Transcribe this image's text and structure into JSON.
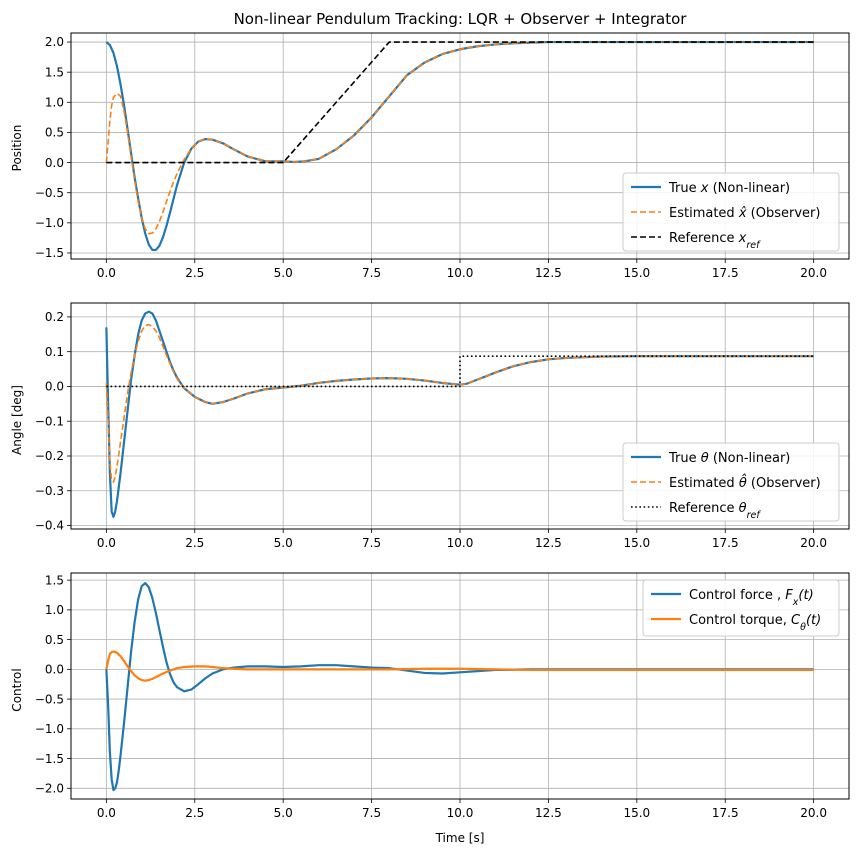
{
  "chart_data": [
    {
      "type": "line",
      "id": "position",
      "title": "Non-linear Pendulum Tracking: LQR + Observer + Integrator",
      "ylabel": "Position",
      "xlabel": "",
      "xlim": [
        -1,
        21
      ],
      "ylim": [
        -1.6,
        2.15
      ],
      "xticks": [
        0,
        2.5,
        5,
        7.5,
        10,
        12.5,
        15,
        17.5,
        20
      ],
      "xtick_labels": [
        "0.0",
        "2.5",
        "5.0",
        "7.5",
        "10.0",
        "12.5",
        "15.0",
        "17.5",
        "20.0"
      ],
      "yticks": [
        -1.5,
        -1.0,
        -0.5,
        0.0,
        0.5,
        1.0,
        1.5,
        2.0
      ],
      "ytick_labels": [
        "−1.5",
        "−1.0",
        "−0.5",
        "0.0",
        "0.5",
        "1.0",
        "1.5",
        "2.0"
      ],
      "grid": true,
      "legend_position": "lower-right",
      "series": [
        {
          "name": "True x (Non-linear)",
          "label_parts": [
            {
              "t": "True "
            },
            {
              "t": "x",
              "i": true
            },
            {
              "t": " (Non-linear)"
            }
          ],
          "color": "#1f77b4",
          "style": "solid",
          "width": 2.2,
          "x": [
            0,
            0.1,
            0.2,
            0.3,
            0.4,
            0.5,
            0.6,
            0.7,
            0.8,
            0.9,
            1.0,
            1.1,
            1.2,
            1.3,
            1.4,
            1.5,
            1.6,
            1.7,
            1.8,
            1.9,
            2.0,
            2.2,
            2.4,
            2.6,
            2.8,
            3.0,
            3.3,
            3.6,
            4.0,
            4.5,
            5.0,
            5.3,
            5.6,
            6.0,
            6.5,
            7.0,
            7.5,
            8.0,
            8.5,
            9.0,
            9.5,
            10.0,
            10.5,
            11.0,
            11.5,
            12.0,
            12.5,
            13.0,
            14.0,
            15.0,
            17.5,
            20.0
          ],
          "y": [
            2.0,
            1.95,
            1.82,
            1.6,
            1.3,
            0.95,
            0.55,
            0.15,
            -0.25,
            -0.6,
            -0.92,
            -1.18,
            -1.36,
            -1.45,
            -1.45,
            -1.38,
            -1.24,
            -1.05,
            -0.83,
            -0.6,
            -0.37,
            0.0,
            0.23,
            0.35,
            0.39,
            0.38,
            0.32,
            0.22,
            0.1,
            0.02,
            0.02,
            0.01,
            0.02,
            0.06,
            0.22,
            0.45,
            0.75,
            1.1,
            1.45,
            1.66,
            1.8,
            1.88,
            1.93,
            1.96,
            1.98,
            1.99,
            2.0,
            2.0,
            2.0,
            2.0,
            2.0,
            2.0
          ]
        },
        {
          "name": "Estimated x̂ (Observer)",
          "label_parts": [
            {
              "t": "Estimated "
            },
            {
              "t": "x̂",
              "i": true
            },
            {
              "t": " (Observer)"
            }
          ],
          "color": "#ff7f0e",
          "style": "dashed",
          "width": 1.6,
          "x": [
            0,
            0.05,
            0.1,
            0.15,
            0.2,
            0.3,
            0.4,
            0.5,
            0.6,
            0.7,
            0.8,
            0.9,
            1.0,
            1.1,
            1.2,
            1.3,
            1.4,
            1.5,
            1.6,
            1.7,
            1.8,
            1.9,
            2.0,
            2.2,
            2.4,
            2.6,
            2.8,
            3.0,
            3.3,
            3.6,
            4.0,
            4.5,
            5.0,
            5.3,
            5.6,
            6.0,
            6.5,
            7.0,
            7.5,
            8.0,
            8.5,
            9.0,
            9.5,
            10.0,
            10.5,
            11.0,
            11.5,
            12.0,
            12.5,
            13.0,
            14.0,
            15.0,
            17.5,
            20.0
          ],
          "y": [
            0.0,
            0.35,
            0.7,
            0.95,
            1.08,
            1.15,
            1.1,
            0.85,
            0.5,
            0.1,
            -0.3,
            -0.65,
            -0.92,
            -1.1,
            -1.18,
            -1.17,
            -1.1,
            -0.98,
            -0.82,
            -0.65,
            -0.48,
            -0.32,
            -0.18,
            0.05,
            0.23,
            0.35,
            0.39,
            0.38,
            0.32,
            0.22,
            0.1,
            0.02,
            0.02,
            0.01,
            0.02,
            0.06,
            0.22,
            0.45,
            0.75,
            1.1,
            1.45,
            1.66,
            1.8,
            1.88,
            1.93,
            1.96,
            1.98,
            1.99,
            2.0,
            2.0,
            2.0,
            2.0,
            2.0,
            2.0
          ]
        },
        {
          "name": "Reference x_ref",
          "label_parts": [
            {
              "t": "Reference "
            },
            {
              "t": "x",
              "i": true
            },
            {
              "t": "ref",
              "i": true,
              "sub": true
            }
          ],
          "color": "#000000",
          "style": "dashed",
          "width": 1.6,
          "x": [
            0,
            5.0,
            8.0,
            20.0
          ],
          "y": [
            0.0,
            0.0,
            2.0,
            2.0
          ]
        }
      ]
    },
    {
      "type": "line",
      "id": "angle",
      "title": "",
      "ylabel": "Angle [deg]",
      "xlabel": "",
      "xlim": [
        -1,
        21
      ],
      "ylim": [
        -0.41,
        0.24
      ],
      "xticks": [
        0,
        2.5,
        5,
        7.5,
        10,
        12.5,
        15,
        17.5,
        20
      ],
      "xtick_labels": [
        "0.0",
        "2.5",
        "5.0",
        "7.5",
        "10.0",
        "12.5",
        "15.0",
        "17.5",
        "20.0"
      ],
      "yticks": [
        -0.4,
        -0.3,
        -0.2,
        -0.1,
        0.0,
        0.1,
        0.2
      ],
      "ytick_labels": [
        "−0.4",
        "−0.3",
        "−0.2",
        "−0.1",
        "0.0",
        "0.1",
        "0.2"
      ],
      "grid": true,
      "legend_position": "lower-right",
      "series": [
        {
          "name": "True θ (Non-linear)",
          "label_parts": [
            {
              "t": "True "
            },
            {
              "t": "θ",
              "i": true
            },
            {
              "t": " (Non-linear)"
            }
          ],
          "color": "#1f77b4",
          "style": "solid",
          "width": 2.2,
          "x": [
            0,
            0.05,
            0.1,
            0.15,
            0.2,
            0.25,
            0.3,
            0.4,
            0.5,
            0.6,
            0.7,
            0.8,
            0.9,
            1.0,
            1.1,
            1.2,
            1.3,
            1.4,
            1.5,
            1.6,
            1.7,
            1.8,
            1.9,
            2.0,
            2.2,
            2.5,
            2.8,
            3.0,
            3.3,
            3.6,
            4.0,
            4.5,
            5.0,
            5.5,
            6.0,
            6.5,
            7.0,
            7.5,
            8.0,
            8.5,
            9.0,
            9.5,
            10.0,
            10.2,
            10.5,
            11.0,
            11.5,
            12.0,
            12.5,
            13.0,
            14.0,
            15.0,
            17.5,
            20.0
          ],
          "y": [
            0.17,
            -0.05,
            -0.25,
            -0.36,
            -0.375,
            -0.36,
            -0.33,
            -0.25,
            -0.16,
            -0.07,
            0.02,
            0.09,
            0.15,
            0.19,
            0.21,
            0.215,
            0.21,
            0.19,
            0.16,
            0.13,
            0.1,
            0.07,
            0.045,
            0.025,
            -0.005,
            -0.03,
            -0.045,
            -0.05,
            -0.045,
            -0.035,
            -0.02,
            -0.008,
            -0.003,
            0.002,
            0.01,
            0.016,
            0.02,
            0.023,
            0.024,
            0.022,
            0.017,
            0.01,
            0.005,
            0.008,
            0.02,
            0.04,
            0.058,
            0.07,
            0.078,
            0.082,
            0.086,
            0.087,
            0.087,
            0.087
          ]
        },
        {
          "name": "Estimated θ̂ (Observer)",
          "label_parts": [
            {
              "t": "Estimated "
            },
            {
              "t": "θ̂",
              "i": true
            },
            {
              "t": " (Observer)"
            }
          ],
          "color": "#ff7f0e",
          "style": "dashed",
          "width": 1.6,
          "x": [
            0,
            0.05,
            0.1,
            0.15,
            0.2,
            0.25,
            0.3,
            0.4,
            0.5,
            0.6,
            0.7,
            0.8,
            0.9,
            1.0,
            1.1,
            1.2,
            1.3,
            1.4,
            1.5,
            1.6,
            1.7,
            1.8,
            1.9,
            2.0,
            2.2,
            2.5,
            2.8,
            3.0,
            3.3,
            3.6,
            4.0,
            4.5,
            5.0,
            5.5,
            6.0,
            6.5,
            7.0,
            7.5,
            8.0,
            8.5,
            9.0,
            9.5,
            10.0,
            10.2,
            10.5,
            11.0,
            11.5,
            12.0,
            12.5,
            13.0,
            14.0,
            15.0,
            17.5,
            20.0
          ],
          "y": [
            0.01,
            -0.1,
            -0.22,
            -0.27,
            -0.275,
            -0.26,
            -0.23,
            -0.16,
            -0.09,
            -0.02,
            0.04,
            0.09,
            0.13,
            0.16,
            0.175,
            0.178,
            0.172,
            0.16,
            0.14,
            0.115,
            0.09,
            0.065,
            0.042,
            0.022,
            -0.005,
            -0.03,
            -0.045,
            -0.05,
            -0.045,
            -0.035,
            -0.02,
            -0.008,
            -0.003,
            0.002,
            0.01,
            0.016,
            0.02,
            0.023,
            0.024,
            0.022,
            0.017,
            0.01,
            0.005,
            0.008,
            0.02,
            0.04,
            0.058,
            0.07,
            0.078,
            0.082,
            0.086,
            0.087,
            0.087,
            0.087
          ]
        },
        {
          "name": "Reference θ_ref",
          "label_parts": [
            {
              "t": "Reference "
            },
            {
              "t": "θ",
              "i": true
            },
            {
              "t": "ref",
              "i": true,
              "sub": true
            }
          ],
          "color": "#000000",
          "style": "dotted",
          "width": 1.6,
          "x": [
            0,
            10.0,
            10.0,
            20.0
          ],
          "y": [
            0.0,
            0.0,
            0.087,
            0.087
          ]
        }
      ]
    },
    {
      "type": "line",
      "id": "control",
      "title": "",
      "ylabel": "Control",
      "xlabel": "Time [s]",
      "xlim": [
        -1,
        21
      ],
      "ylim": [
        -2.18,
        1.62
      ],
      "xticks": [
        0,
        2.5,
        5,
        7.5,
        10,
        12.5,
        15,
        17.5,
        20
      ],
      "xtick_labels": [
        "0.0",
        "2.5",
        "5.0",
        "7.5",
        "10.0",
        "12.5",
        "15.0",
        "17.5",
        "20.0"
      ],
      "yticks": [
        -2.0,
        -1.5,
        -1.0,
        -0.5,
        0.0,
        0.5,
        1.0,
        1.5
      ],
      "ytick_labels": [
        "−2.0",
        "−1.5",
        "−1.0",
        "−0.5",
        "0.0",
        "0.5",
        "1.0",
        "1.5"
      ],
      "grid": true,
      "legend_position": "upper-right",
      "series": [
        {
          "name": "Control force , F_x(t)",
          "label_parts": [
            {
              "t": "Control force , "
            },
            {
              "t": "F",
              "i": true
            },
            {
              "t": "x",
              "i": true,
              "sub": true
            },
            {
              "t": "(",
              "i": true
            },
            {
              "t": "t",
              "i": true
            },
            {
              "t": ")",
              "i": true
            }
          ],
          "color": "#1f77b4",
          "style": "solid",
          "width": 2.2,
          "x": [
            0,
            0.05,
            0.1,
            0.15,
            0.2,
            0.25,
            0.3,
            0.35,
            0.4,
            0.5,
            0.6,
            0.7,
            0.8,
            0.9,
            1.0,
            1.1,
            1.2,
            1.3,
            1.4,
            1.5,
            1.6,
            1.7,
            1.8,
            1.9,
            2.0,
            2.2,
            2.4,
            2.6,
            2.8,
            3.0,
            3.3,
            3.6,
            4.0,
            4.5,
            5.0,
            5.5,
            6.0,
            6.5,
            7.0,
            7.5,
            8.0,
            8.5,
            9.0,
            9.5,
            10.0,
            10.5,
            11.0,
            12.0,
            13.0,
            15.0,
            17.5,
            20.0
          ],
          "y": [
            0.0,
            -0.6,
            -1.4,
            -1.85,
            -2.03,
            -2.0,
            -1.9,
            -1.7,
            -1.45,
            -0.9,
            -0.3,
            0.3,
            0.8,
            1.18,
            1.4,
            1.45,
            1.38,
            1.2,
            0.95,
            0.66,
            0.38,
            0.12,
            -0.08,
            -0.22,
            -0.3,
            -0.37,
            -0.34,
            -0.25,
            -0.15,
            -0.07,
            0.0,
            0.03,
            0.05,
            0.05,
            0.04,
            0.05,
            0.07,
            0.07,
            0.05,
            0.03,
            0.02,
            -0.02,
            -0.06,
            -0.07,
            -0.05,
            -0.03,
            -0.01,
            0.0,
            0.0,
            0.0,
            0.0,
            0.0
          ]
        },
        {
          "name": "Control torque, C_θ(t)",
          "label_parts": [
            {
              "t": "Control torque, "
            },
            {
              "t": "C",
              "i": true
            },
            {
              "t": "θ",
              "i": true,
              "sub": true
            },
            {
              "t": "(",
              "i": true
            },
            {
              "t": "t",
              "i": true
            },
            {
              "t": ")",
              "i": true
            }
          ],
          "color": "#ff7f0e",
          "style": "solid",
          "width": 2.2,
          "x": [
            0,
            0.05,
            0.1,
            0.15,
            0.2,
            0.25,
            0.3,
            0.4,
            0.5,
            0.6,
            0.7,
            0.8,
            0.9,
            1.0,
            1.1,
            1.2,
            1.3,
            1.4,
            1.5,
            1.6,
            1.8,
            2.0,
            2.2,
            2.5,
            2.8,
            3.0,
            3.3,
            3.6,
            4.0,
            4.5,
            5.0,
            6.0,
            7.0,
            8.0,
            9.0,
            10.0,
            11.0,
            12.0,
            15.0,
            20.0
          ],
          "y": [
            0.0,
            0.15,
            0.26,
            0.29,
            0.3,
            0.29,
            0.28,
            0.22,
            0.14,
            0.05,
            -0.03,
            -0.1,
            -0.15,
            -0.18,
            -0.19,
            -0.18,
            -0.16,
            -0.13,
            -0.1,
            -0.07,
            -0.02,
            0.02,
            0.04,
            0.05,
            0.05,
            0.04,
            0.02,
            0.01,
            0.0,
            0.0,
            0.0,
            0.0,
            0.0,
            0.0,
            0.01,
            0.01,
            0.0,
            -0.01,
            -0.01,
            -0.01
          ]
        }
      ]
    }
  ]
}
